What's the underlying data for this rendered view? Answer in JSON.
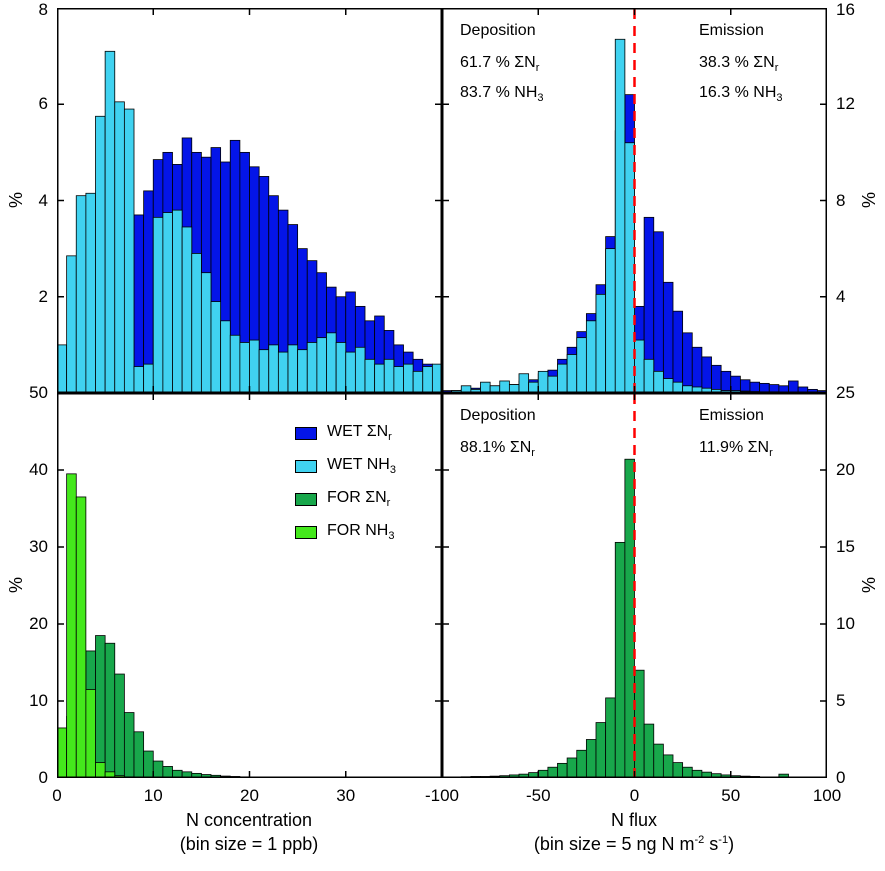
{
  "axes": {
    "y_label": "%",
    "conc_title": "N concentration",
    "conc_subtitle": "(bin size = 1 ppb)",
    "flux_title": "N flux",
    "flux_subtitle": {
      "p1": "(bin size = 5 ng N m",
      "s1": "-2",
      "p2": " s",
      "s2": "-1",
      "p3": ")"
    }
  },
  "colors": {
    "wet_sigma": "#0415e8",
    "wet_nh3": "#40d2f0",
    "for_sigma": "#18a74b",
    "for_nh3": "#44e81c",
    "zero_line": "#ff0000",
    "axis": "#000000"
  },
  "legend": {
    "items": [
      {
        "main": "WET ΣN",
        "sub": "r",
        "color": "#0415e8"
      },
      {
        "main": "WET NH",
        "sub": "3",
        "color": "#40d2f0"
      },
      {
        "main": "FOR ΣN",
        "sub": "r",
        "color": "#18a74b"
      },
      {
        "main": "FOR NH",
        "sub": "3",
        "color": "#44e81c"
      }
    ]
  },
  "chart_data": [
    {
      "id": "wet_conc",
      "type": "bar",
      "kind": "histogram",
      "xlabel": "N concentration (bin size = 1 ppb)",
      "ylabel": "%",
      "xlim": [
        0,
        40
      ],
      "ylim": [
        0,
        8
      ],
      "bin_width": 1,
      "x_ticks": [
        0,
        10,
        20,
        30,
        40
      ],
      "x_labels": [],
      "y_ticks": [
        2,
        4,
        6,
        8
      ],
      "y_labels": [
        [
          2,
          "2"
        ],
        [
          4,
          "4"
        ],
        [
          6,
          "6"
        ],
        [
          8,
          "8"
        ]
      ],
      "y_label_side": "left",
      "zero_line": false,
      "series": [
        {
          "name": "WET ΣNr",
          "color": "#0415e8",
          "start": 0,
          "values": [
            0,
            0,
            0,
            0,
            0.6,
            1.2,
            1.8,
            2.4,
            3.7,
            4.2,
            4.85,
            5.0,
            4.75,
            5.3,
            5.0,
            4.9,
            5.1,
            4.8,
            5.25,
            5.0,
            4.7,
            4.5,
            4.1,
            3.8,
            3.5,
            3.0,
            2.75,
            2.5,
            2.2,
            2.0,
            2.1,
            1.8,
            1.5,
            1.6,
            1.3,
            1.0,
            0.85,
            0.7,
            0.6,
            0.55
          ]
        },
        {
          "name": "WET NH3",
          "color": "#40d2f0",
          "start": 0,
          "values": [
            1.0,
            2.85,
            4.1,
            4.15,
            5.75,
            7.1,
            6.05,
            5.9,
            0.55,
            0.6,
            3.65,
            3.75,
            3.8,
            3.45,
            2.9,
            2.5,
            1.9,
            1.5,
            1.2,
            1.05,
            1.1,
            0.9,
            1.0,
            0.85,
            1.0,
            0.9,
            1.05,
            1.15,
            1.25,
            1.05,
            0.85,
            0.95,
            0.7,
            0.6,
            0.7,
            0.55,
            0.6,
            0.45,
            0.55,
            0.6
          ]
        }
      ]
    },
    {
      "id": "wet_flux",
      "type": "bar",
      "kind": "histogram",
      "xlabel": "N flux (bin size = 5 ng N m-2 s-1)",
      "ylabel": "%",
      "xlim": [
        -100,
        100
      ],
      "ylim": [
        0,
        16
      ],
      "bin_width": 5,
      "x_ticks": [
        -100,
        -50,
        0,
        50,
        100
      ],
      "x_labels": [],
      "y_ticks": [
        4,
        8,
        12,
        16
      ],
      "y_labels": [
        [
          4,
          "4"
        ],
        [
          8,
          "8"
        ],
        [
          12,
          "12"
        ],
        [
          16,
          "16"
        ]
      ],
      "y_label_side": "right",
      "zero_line": true,
      "annotations": {
        "deposition": {
          "title": "Deposition",
          "lines": [
            {
              "main": "61.7 % ΣN",
              "sub": "r"
            },
            {
              "main": "83.7 % NH",
              "sub": "3"
            }
          ]
        },
        "emission": {
          "title": "Emission",
          "lines": [
            {
              "main": "38.3 % ΣN",
              "sub": "r"
            },
            {
              "main": "16.3 % NH",
              "sub": "3"
            }
          ]
        }
      },
      "series": [
        {
          "name": "WET ΣNr",
          "color": "#0415e8",
          "start": -100,
          "values": [
            0.1,
            0.1,
            0.15,
            0.2,
            0.25,
            0.3,
            0.3,
            0.35,
            0.5,
            0.55,
            0.8,
            0.95,
            1.4,
            1.9,
            2.55,
            3.3,
            4.5,
            6.5,
            10.9,
            12.4,
            3.6,
            7.3,
            6.7,
            4.6,
            3.4,
            2.5,
            1.9,
            1.5,
            1.15,
            0.9,
            0.7,
            0.55,
            0.45,
            0.4,
            0.35,
            0.3,
            0.5,
            0.25,
            0.15,
            0.1
          ]
        },
        {
          "name": "WET NH3",
          "color": "#40d2f0",
          "start": -100,
          "values": [
            0.05,
            0.1,
            0.3,
            0.15,
            0.45,
            0.3,
            0.5,
            0.35,
            0.8,
            0.45,
            0.9,
            0.7,
            1.2,
            1.6,
            2.3,
            3.0,
            4.1,
            6.0,
            14.7,
            10.4,
            2.2,
            1.4,
            0.9,
            0.6,
            0.45,
            0.3,
            0.25,
            0.2,
            0.15,
            0.1,
            0.1,
            0.08,
            0.06,
            0.05,
            0.05,
            0.04,
            0.03,
            0.02,
            0.02,
            0.01
          ]
        }
      ]
    },
    {
      "id": "for_conc",
      "type": "bar",
      "kind": "histogram",
      "xlabel": "N concentration (bin size = 1 ppb)",
      "ylabel": "%",
      "xlim": [
        0,
        40
      ],
      "ylim": [
        0,
        50
      ],
      "bin_width": 1,
      "x_ticks": [
        0,
        10,
        20,
        30,
        40
      ],
      "x_labels": [
        [
          0,
          "0"
        ],
        [
          10,
          "10"
        ],
        [
          20,
          "20"
        ],
        [
          30,
          "30"
        ]
      ],
      "y_ticks": [
        0,
        10,
        20,
        30,
        40,
        50
      ],
      "y_labels": [
        [
          0,
          "0"
        ],
        [
          10,
          "10"
        ],
        [
          20,
          "20"
        ],
        [
          30,
          "30"
        ],
        [
          40,
          "40"
        ],
        [
          50,
          "50"
        ]
      ],
      "y_label_side": "left",
      "zero_line": false,
      "series": [
        {
          "name": "FOR ΣNr",
          "color": "#18a74b",
          "start": 0,
          "values": [
            2.0,
            8.0,
            10.5,
            16.5,
            18.5,
            17.5,
            13.5,
            8.5,
            6.0,
            3.5,
            2.2,
            1.5,
            1.0,
            0.8,
            0.6,
            0.45,
            0.35,
            0.25,
            0.2,
            0.15,
            0.12,
            0.1,
            0.08,
            0.06,
            0.05
          ]
        },
        {
          "name": "FOR NH3",
          "color": "#44e81c",
          "start": 0,
          "values": [
            6.5,
            39.5,
            36.5,
            11.5,
            2.0,
            0.8,
            0.3,
            0.15,
            0.1,
            0.05
          ]
        }
      ]
    },
    {
      "id": "for_flux",
      "type": "bar",
      "kind": "histogram",
      "xlabel": "N flux (bin size = 5 ng N m-2 s-1)",
      "ylabel": "%",
      "xlim": [
        -100,
        100
      ],
      "ylim": [
        0,
        25
      ],
      "bin_width": 5,
      "x_ticks": [
        -100,
        -50,
        0,
        50,
        100
      ],
      "x_labels": [
        [
          -100,
          "-100"
        ],
        [
          -50,
          "-50"
        ],
        [
          0,
          "0"
        ],
        [
          50,
          "50"
        ],
        [
          100,
          "100"
        ]
      ],
      "y_ticks": [
        0,
        5,
        10,
        15,
        20,
        25
      ],
      "y_labels": [
        [
          0,
          "0"
        ],
        [
          5,
          "5"
        ],
        [
          10,
          "10"
        ],
        [
          15,
          "15"
        ],
        [
          20,
          "20"
        ],
        [
          25,
          "25"
        ]
      ],
      "y_label_side": "right",
      "zero_line": true,
      "annotations": {
        "deposition": {
          "title": "Deposition",
          "lines": [
            {
              "main": "88.1% ΣN",
              "sub": "r"
            }
          ]
        },
        "emission": {
          "title": "Emission",
          "lines": [
            {
              "main": "11.9% ΣN",
              "sub": "r"
            }
          ]
        }
      },
      "series": [
        {
          "name": "FOR ΣNr",
          "color": "#18a74b",
          "start": -100,
          "values": [
            0.05,
            0.05,
            0.08,
            0.1,
            0.1,
            0.12,
            0.15,
            0.2,
            0.25,
            0.35,
            0.5,
            0.7,
            0.95,
            1.3,
            1.8,
            2.5,
            3.6,
            5.2,
            15.3,
            20.7,
            7.0,
            3.5,
            2.2,
            1.5,
            1.0,
            0.7,
            0.5,
            0.38,
            0.28,
            0.2,
            0.15,
            0.12,
            0.1,
            0.07,
            0.05,
            0.25,
            0.03,
            0.02,
            0.02,
            0.02
          ]
        }
      ]
    }
  ]
}
